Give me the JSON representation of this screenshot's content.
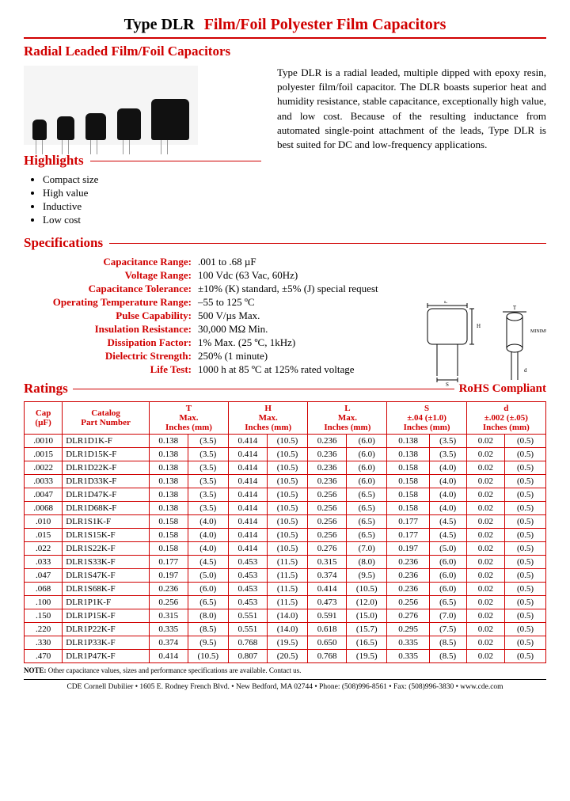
{
  "title": {
    "prefix": "Type DLR",
    "suffix": "Film/Foil Polyester Film Capacitors"
  },
  "subtitle": "Radial Leaded Film/Foil Capacitors",
  "description": "Type DLR is a radial leaded, multiple dipped with epoxy resin, polyester film/foil capacitor.  The DLR boasts superior heat and humidity resistance, stable capacitance, exceptionally high value, and low cost.  Because of the resulting inductance from automated single-point attachment of the leads, Type DLR is best suited for DC and low-frequency applications.",
  "highlights": {
    "heading": "Highlights",
    "items": [
      "Compact size",
      "High value",
      "Inductive",
      "Low cost"
    ]
  },
  "specs": {
    "heading": "Specifications",
    "rows": [
      {
        "label": "Capacitance Range:",
        "value": ".001 to .68 µF"
      },
      {
        "label": "Voltage Range:",
        "value": "100 Vdc (63 Vac, 60Hz)"
      },
      {
        "label": "Capacitance Tolerance:",
        "value": "±10% (K) standard, ±5% (J) special request"
      },
      {
        "label": "Operating Temperature Range:",
        "value": "–55 to 125 ºC"
      },
      {
        "label": "Pulse Capability:",
        "value": "500 V/µs Max."
      },
      {
        "label": "Insulation Resistance:",
        "value": "30,000 MΩ Min."
      },
      {
        "label": "Dissipation Factor:",
        "value": "1% Max. (25 ºC, 1kHz)"
      },
      {
        "label": "Dielectric Strength:",
        "value": "250% (1 minute)"
      },
      {
        "label": "Life Test:",
        "value": "1000 h at 85 ºC at 125% rated voltage"
      }
    ]
  },
  "ratings": {
    "heading": "Ratings",
    "rohs": "RoHS Compliant",
    "header": {
      "cap": "Cap",
      "cap_unit": "(µF)",
      "catalog": "Catalog",
      "part": "Part Number",
      "cols": [
        {
          "sym": "T",
          "sub": "Max."
        },
        {
          "sym": "H",
          "sub": "Max."
        },
        {
          "sym": "L",
          "sub": "Max."
        },
        {
          "sym": "S",
          "sub": "±.04 (±1.0)"
        },
        {
          "sym": "d",
          "sub": "±.002 (±.05)"
        }
      ],
      "unit": "Inches (mm)"
    },
    "groups": [
      [
        {
          "cap": ".0010",
          "pn": "DLR1D1K-F",
          "t_in": "0.138",
          "t_mm": "(3.5)",
          "h_in": "0.414",
          "h_mm": "(10.5)",
          "l_in": "0.236",
          "l_mm": "(6.0)",
          "s_in": "0.138",
          "s_mm": "(3.5)",
          "d_in": "0.02",
          "d_mm": "(0.5)"
        },
        {
          "cap": ".0015",
          "pn": "DLR1D15K-F",
          "t_in": "0.138",
          "t_mm": "(3.5)",
          "h_in": "0.414",
          "h_mm": "(10.5)",
          "l_in": "0.236",
          "l_mm": "(6.0)",
          "s_in": "0.138",
          "s_mm": "(3.5)",
          "d_in": "0.02",
          "d_mm": "(0.5)"
        },
        {
          "cap": ".0022",
          "pn": "DLR1D22K-F",
          "t_in": "0.138",
          "t_mm": "(3.5)",
          "h_in": "0.414",
          "h_mm": "(10.5)",
          "l_in": "0.236",
          "l_mm": "(6.0)",
          "s_in": "0.158",
          "s_mm": "(4.0)",
          "d_in": "0.02",
          "d_mm": "(0.5)"
        },
        {
          "cap": ".0033",
          "pn": "DLR1D33K-F",
          "t_in": "0.138",
          "t_mm": "(3.5)",
          "h_in": "0.414",
          "h_mm": "(10.5)",
          "l_in": "0.236",
          "l_mm": "(6.0)",
          "s_in": "0.158",
          "s_mm": "(4.0)",
          "d_in": "0.02",
          "d_mm": "(0.5)"
        },
        {
          "cap": ".0047",
          "pn": "DLR1D47K-F",
          "t_in": "0.138",
          "t_mm": "(3.5)",
          "h_in": "0.414",
          "h_mm": "(10.5)",
          "l_in": "0.256",
          "l_mm": "(6.5)",
          "s_in": "0.158",
          "s_mm": "(4.0)",
          "d_in": "0.02",
          "d_mm": "(0.5)"
        }
      ],
      [
        {
          "cap": ".0068",
          "pn": "DLR1D68K-F",
          "t_in": "0.138",
          "t_mm": "(3.5)",
          "h_in": "0.414",
          "h_mm": "(10.5)",
          "l_in": "0.256",
          "l_mm": "(6.5)",
          "s_in": "0.158",
          "s_mm": "(4.0)",
          "d_in": "0.02",
          "d_mm": "(0.5)"
        },
        {
          "cap": ".010",
          "pn": "DLR1S1K-F",
          "t_in": "0.158",
          "t_mm": "(4.0)",
          "h_in": "0.414",
          "h_mm": "(10.5)",
          "l_in": "0.256",
          "l_mm": "(6.5)",
          "s_in": "0.177",
          "s_mm": "(4.5)",
          "d_in": "0.02",
          "d_mm": "(0.5)"
        },
        {
          "cap": ".015",
          "pn": "DLR1S15K-F",
          "t_in": "0.158",
          "t_mm": "(4.0)",
          "h_in": "0.414",
          "h_mm": "(10.5)",
          "l_in": "0.256",
          "l_mm": "(6.5)",
          "s_in": "0.177",
          "s_mm": "(4.5)",
          "d_in": "0.02",
          "d_mm": "(0.5)"
        },
        {
          "cap": ".022",
          "pn": "DLR1S22K-F",
          "t_in": "0.158",
          "t_mm": "(4.0)",
          "h_in": "0.414",
          "h_mm": "(10.5)",
          "l_in": "0.276",
          "l_mm": "(7.0)",
          "s_in": "0.197",
          "s_mm": "(5.0)",
          "d_in": "0.02",
          "d_mm": "(0.5)"
        },
        {
          "cap": ".033",
          "pn": "DLR1S33K-F",
          "t_in": "0.177",
          "t_mm": "(4.5)",
          "h_in": "0.453",
          "h_mm": "(11.5)",
          "l_in": "0.315",
          "l_mm": "(8.0)",
          "s_in": "0.236",
          "s_mm": "(6.0)",
          "d_in": "0.02",
          "d_mm": "(0.5)"
        }
      ],
      [
        {
          "cap": ".047",
          "pn": "DLR1S47K-F",
          "t_in": "0.197",
          "t_mm": "(5.0)",
          "h_in": "0.453",
          "h_mm": "(11.5)",
          "l_in": "0.374",
          "l_mm": "(9.5)",
          "s_in": "0.236",
          "s_mm": "(6.0)",
          "d_in": "0.02",
          "d_mm": "(0.5)"
        },
        {
          "cap": ".068",
          "pn": "DLR1S68K-F",
          "t_in": "0.236",
          "t_mm": "(6.0)",
          "h_in": "0.453",
          "h_mm": "(11.5)",
          "l_in": "0.414",
          "l_mm": "(10.5)",
          "s_in": "0.236",
          "s_mm": "(6.0)",
          "d_in": "0.02",
          "d_mm": "(0.5)"
        },
        {
          "cap": ".100",
          "pn": "DLR1P1K-F",
          "t_in": "0.256",
          "t_mm": "(6.5)",
          "h_in": "0.453",
          "h_mm": "(11.5)",
          "l_in": "0.473",
          "l_mm": "(12.0)",
          "s_in": "0.256",
          "s_mm": "(6.5)",
          "d_in": "0.02",
          "d_mm": "(0.5)"
        },
        {
          "cap": ".150",
          "pn": "DLR1P15K-F",
          "t_in": "0.315",
          "t_mm": "(8.0)",
          "h_in": "0.551",
          "h_mm": "(14.0)",
          "l_in": "0.591",
          "l_mm": "(15.0)",
          "s_in": "0.276",
          "s_mm": "(7.0)",
          "d_in": "0.02",
          "d_mm": "(0.5)"
        },
        {
          "cap": ".220",
          "pn": "DLR1P22K-F",
          "t_in": "0.335",
          "t_mm": "(8.5)",
          "h_in": "0.551",
          "h_mm": "(14.0)",
          "l_in": "0.618",
          "l_mm": "(15.7)",
          "s_in": "0.295",
          "s_mm": "(7.5)",
          "d_in": "0.02",
          "d_mm": "(0.5)"
        }
      ],
      [
        {
          "cap": ".330",
          "pn": "DLR1P33K-F",
          "t_in": "0.374",
          "t_mm": "(9.5)",
          "h_in": "0.768",
          "h_mm": "(19.5)",
          "l_in": "0.650",
          "l_mm": "(16.5)",
          "s_in": "0.335",
          "s_mm": "(8.5)",
          "d_in": "0.02",
          "d_mm": "(0.5)"
        },
        {
          "cap": ".470",
          "pn": "DLR1P47K-F",
          "t_in": "0.414",
          "t_mm": "(10.5)",
          "h_in": "0.807",
          "h_mm": "(20.5)",
          "l_in": "0.768",
          "l_mm": "(19.5)",
          "s_in": "0.335",
          "s_mm": "(8.5)",
          "d_in": "0.02",
          "d_mm": "(0.5)"
        }
      ]
    ]
  },
  "note": {
    "prefix": "NOTE:",
    "text": "Other capacitance values, sizes and performance specifications are available. Contact us."
  },
  "footer": "CDE Cornell Dubilier • 1605 E. Rodney French Blvd. • New Bedford, MA 02744 • Phone: (508)996-8561 • Fax: (508)996-3830 • www.cde.com",
  "colors": {
    "red": "#d00000",
    "black": "#000000",
    "bg": "#ffffff"
  },
  "photo_caps": [
    {
      "w": 18,
      "h": 26
    },
    {
      "w": 22,
      "h": 30
    },
    {
      "w": 26,
      "h": 34
    },
    {
      "w": 30,
      "h": 40
    },
    {
      "w": 48,
      "h": 52
    }
  ]
}
